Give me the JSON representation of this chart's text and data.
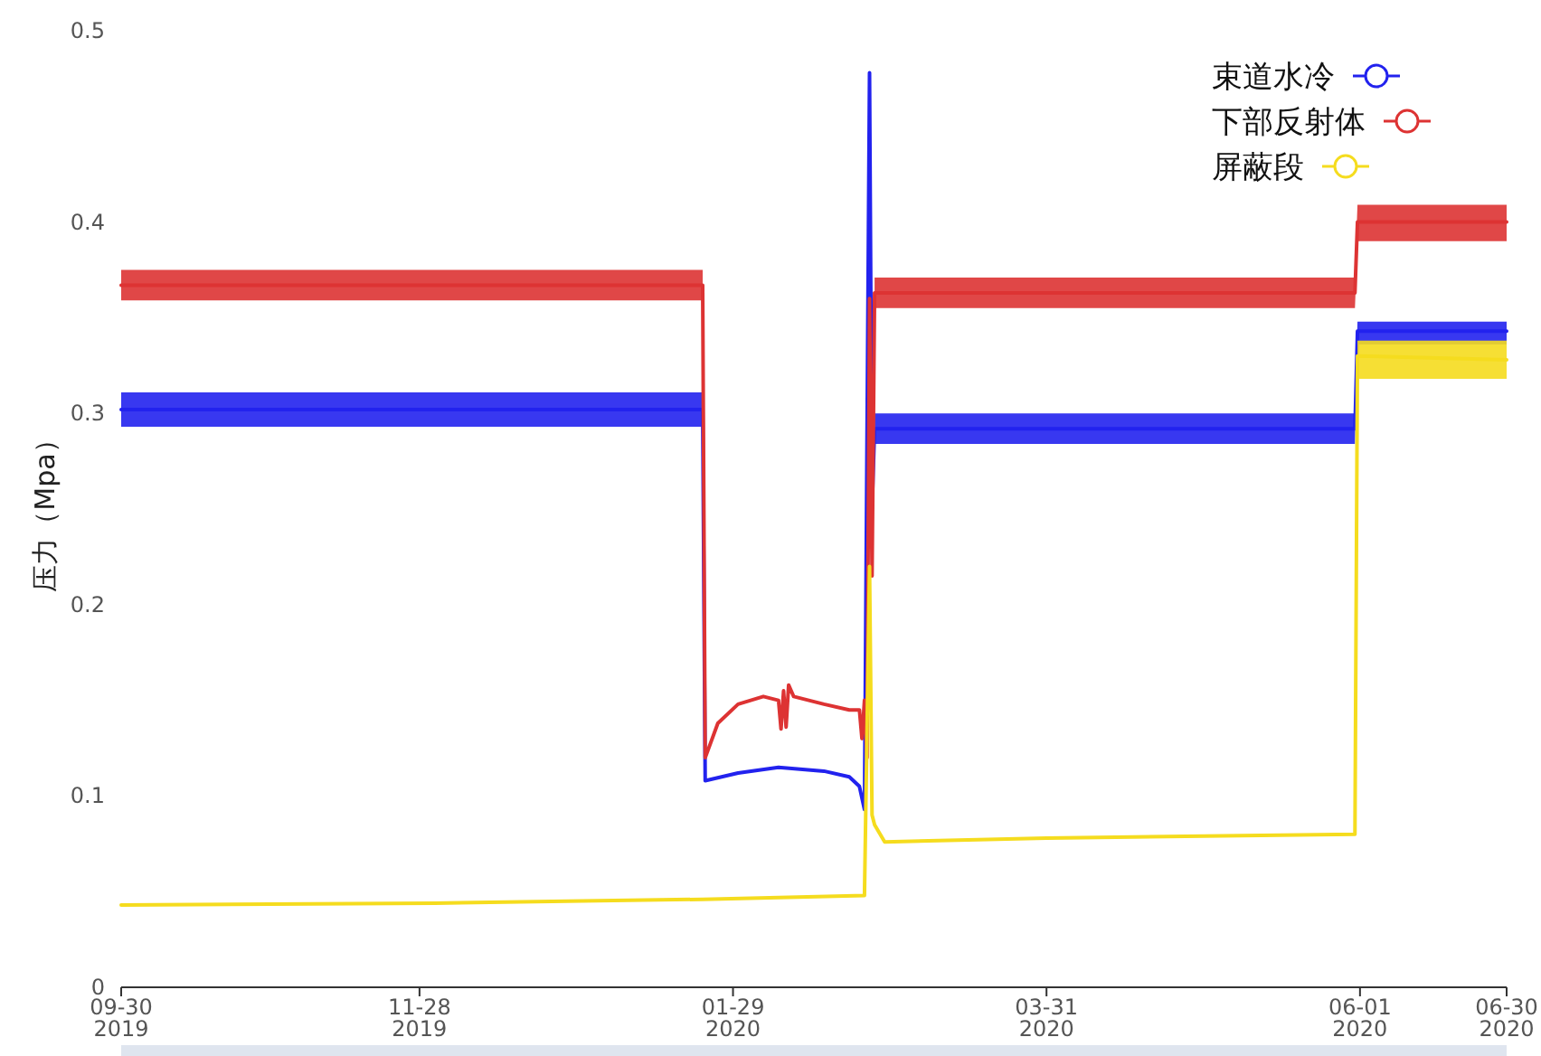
{
  "chart_data": {
    "type": "line",
    "ylabel": "压力（Mpa）",
    "xlim": [
      "2019-09-30",
      "2020-06-30"
    ],
    "xticks": [
      {
        "value": "2019-09-30",
        "label": "09-30\n2019"
      },
      {
        "value": "2019-11-28",
        "label": "11-28\n2019"
      },
      {
        "value": "2020-01-29",
        "label": "01-29\n2020"
      },
      {
        "value": "2020-03-31",
        "label": "03-31\n2020"
      },
      {
        "value": "2020-06-01",
        "label": "06-01\n2020"
      },
      {
        "value": "2020-06-30",
        "label": "06-30\n2020"
      }
    ],
    "ylim": [
      0,
      0.5
    ],
    "yticks": [
      0,
      0.1,
      0.2,
      0.3,
      0.4,
      0.5
    ],
    "grid": false,
    "legend": "top right",
    "line_style": "solid",
    "series": [
      {
        "name": "束道水冷",
        "color": "#2222ee",
        "x": [
          "2019-09-30",
          "2020-01-23",
          "2020-01-23T12:00",
          "2020-01-30",
          "2020-02-07",
          "2020-02-16",
          "2020-02-21",
          "2020-02-23",
          "2020-02-24",
          "2020-02-25",
          "2020-02-25T12:00",
          "2020-02-26",
          "2020-05-31",
          "2020-05-31T12:00",
          "2020-06-30"
        ],
        "values": [
          0.302,
          0.302,
          0.108,
          0.112,
          0.115,
          0.113,
          0.11,
          0.105,
          0.093,
          0.478,
          0.25,
          0.292,
          0.292,
          0.343,
          0.343
        ],
        "lower": [
          0.293,
          0.293,
          null,
          null,
          null,
          null,
          null,
          null,
          null,
          null,
          null,
          0.284,
          0.284,
          0.336,
          0.336
        ],
        "upper": [
          0.311,
          0.311,
          null,
          null,
          null,
          null,
          null,
          null,
          null,
          null,
          null,
          0.3,
          0.3,
          0.348,
          0.348
        ]
      },
      {
        "name": "下部反射体",
        "color": "#dd3333",
        "x": [
          "2019-09-30",
          "2020-01-23",
          "2020-01-23T12:00",
          "2020-01-26",
          "2020-01-30",
          "2020-02-04",
          "2020-02-07",
          "2020-02-07T12:00",
          "2020-02-08",
          "2020-02-08T12:00",
          "2020-02-09",
          "2020-02-10",
          "2020-02-16",
          "2020-02-21",
          "2020-02-23",
          "2020-02-23T12:00",
          "2020-02-24",
          "2020-02-24T12:00",
          "2020-02-25",
          "2020-02-25T12:00",
          "2020-02-26",
          "2020-05-31",
          "2020-05-31T12:00",
          "2020-06-30"
        ],
        "values": [
          0.367,
          0.367,
          0.12,
          0.138,
          0.148,
          0.152,
          0.15,
          0.135,
          0.155,
          0.136,
          0.158,
          0.152,
          0.148,
          0.145,
          0.145,
          0.13,
          0.15,
          0.12,
          0.36,
          0.215,
          0.363,
          0.363,
          0.4,
          0.4
        ],
        "lower": [
          0.359,
          0.359,
          null,
          null,
          null,
          null,
          null,
          null,
          null,
          null,
          null,
          null,
          null,
          null,
          null,
          null,
          null,
          null,
          null,
          null,
          0.355,
          0.355,
          0.39,
          0.39
        ],
        "upper": [
          0.375,
          0.375,
          null,
          null,
          null,
          null,
          null,
          null,
          null,
          null,
          null,
          null,
          null,
          null,
          null,
          null,
          null,
          null,
          null,
          null,
          0.371,
          0.371,
          0.409,
          0.409
        ]
      },
      {
        "name": "屏蔽段",
        "color": "#f5dc1e",
        "x": [
          "2019-09-30",
          "2019-12-01",
          "2020-01-23",
          "2020-02-24",
          "2020-02-25",
          "2020-02-25T12:00",
          "2020-02-26",
          "2020-02-28",
          "2020-03-31",
          "2020-05-31",
          "2020-05-31T12:00",
          "2020-06-30"
        ],
        "values": [
          0.043,
          0.044,
          0.046,
          0.048,
          0.22,
          0.09,
          0.085,
          0.076,
          0.078,
          0.08,
          0.33,
          0.328
        ],
        "lower": [
          null,
          null,
          null,
          null,
          null,
          null,
          null,
          null,
          null,
          null,
          0.318,
          0.318
        ],
        "upper": [
          null,
          null,
          null,
          null,
          null,
          null,
          null,
          null,
          null,
          null,
          0.338,
          0.338
        ]
      }
    ]
  }
}
